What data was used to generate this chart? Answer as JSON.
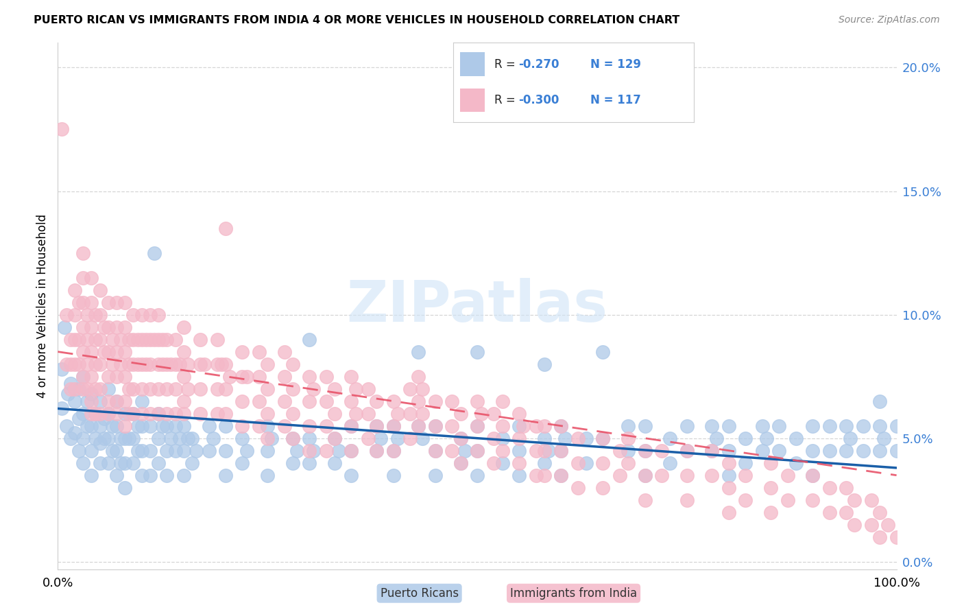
{
  "title": "PUERTO RICAN VS IMMIGRANTS FROM INDIA 4 OR MORE VEHICLES IN HOUSEHOLD CORRELATION CHART",
  "source": "Source: ZipAtlas.com",
  "ylabel": "4 or more Vehicles in Household",
  "xlim": [
    0,
    100
  ],
  "ylim": [
    -0.3,
    21
  ],
  "ytick_vals": [
    0,
    5,
    10,
    15,
    20
  ],
  "ytick_labels": [
    "0.0%",
    "5.0%",
    "10.0%",
    "15.0%",
    "20.0%"
  ],
  "color_blue": "#aec9e8",
  "color_pink": "#f4b8c8",
  "line_blue": "#1a5fa8",
  "line_pink": "#e8546a",
  "watermark": "ZIPatlas",
  "blue_scatter": [
    [
      0.5,
      7.8
    ],
    [
      0.5,
      6.2
    ],
    [
      0.8,
      9.5
    ],
    [
      1.0,
      5.5
    ],
    [
      1.2,
      6.8
    ],
    [
      1.5,
      7.2
    ],
    [
      1.5,
      5.0
    ],
    [
      2.0,
      6.5
    ],
    [
      2.0,
      5.2
    ],
    [
      2.5,
      7.0
    ],
    [
      2.5,
      5.8
    ],
    [
      2.5,
      4.5
    ],
    [
      3.0,
      7.5
    ],
    [
      3.0,
      6.0
    ],
    [
      3.0,
      5.0
    ],
    [
      3.0,
      4.0
    ],
    [
      3.5,
      6.5
    ],
    [
      3.5,
      5.5
    ],
    [
      4.0,
      6.8
    ],
    [
      4.0,
      5.5
    ],
    [
      4.0,
      4.5
    ],
    [
      4.0,
      3.5
    ],
    [
      4.5,
      6.0
    ],
    [
      4.5,
      5.0
    ],
    [
      5.0,
      6.5
    ],
    [
      5.0,
      5.5
    ],
    [
      5.0,
      4.8
    ],
    [
      5.0,
      4.0
    ],
    [
      5.5,
      5.8
    ],
    [
      5.5,
      5.0
    ],
    [
      6.0,
      7.0
    ],
    [
      6.0,
      6.0
    ],
    [
      6.0,
      5.0
    ],
    [
      6.0,
      4.0
    ],
    [
      6.5,
      5.5
    ],
    [
      6.5,
      4.5
    ],
    [
      7.0,
      6.5
    ],
    [
      7.0,
      5.5
    ],
    [
      7.0,
      4.5
    ],
    [
      7.0,
      3.5
    ],
    [
      7.5,
      5.0
    ],
    [
      7.5,
      4.0
    ],
    [
      8.0,
      6.0
    ],
    [
      8.0,
      5.0
    ],
    [
      8.0,
      4.0
    ],
    [
      8.0,
      3.0
    ],
    [
      8.5,
      5.0
    ],
    [
      9.0,
      6.0
    ],
    [
      9.0,
      5.0
    ],
    [
      9.0,
      4.0
    ],
    [
      9.5,
      5.5
    ],
    [
      9.5,
      4.5
    ],
    [
      10.0,
      6.5
    ],
    [
      10.0,
      5.5
    ],
    [
      10.0,
      4.5
    ],
    [
      10.0,
      3.5
    ],
    [
      11.0,
      5.5
    ],
    [
      11.0,
      4.5
    ],
    [
      11.0,
      3.5
    ],
    [
      11.5,
      12.5
    ],
    [
      12.0,
      6.0
    ],
    [
      12.0,
      5.0
    ],
    [
      12.0,
      4.0
    ],
    [
      12.5,
      5.5
    ],
    [
      13.0,
      5.5
    ],
    [
      13.0,
      4.5
    ],
    [
      13.0,
      3.5
    ],
    [
      13.5,
      5.0
    ],
    [
      14.0,
      5.5
    ],
    [
      14.0,
      4.5
    ],
    [
      14.5,
      5.0
    ],
    [
      15.0,
      5.5
    ],
    [
      15.0,
      4.5
    ],
    [
      15.0,
      3.5
    ],
    [
      15.5,
      5.0
    ],
    [
      16.0,
      5.0
    ],
    [
      16.0,
      4.0
    ],
    [
      16.5,
      4.5
    ],
    [
      18.0,
      5.5
    ],
    [
      18.0,
      4.5
    ],
    [
      18.5,
      5.0
    ],
    [
      20.0,
      5.5
    ],
    [
      20.0,
      4.5
    ],
    [
      20.0,
      3.5
    ],
    [
      22.0,
      5.0
    ],
    [
      22.0,
      4.0
    ],
    [
      22.5,
      4.5
    ],
    [
      25.0,
      5.5
    ],
    [
      25.0,
      4.5
    ],
    [
      25.0,
      3.5
    ],
    [
      25.5,
      5.0
    ],
    [
      28.0,
      5.0
    ],
    [
      28.0,
      4.0
    ],
    [
      28.5,
      4.5
    ],
    [
      30.0,
      9.0
    ],
    [
      30.0,
      5.0
    ],
    [
      30.0,
      4.0
    ],
    [
      30.5,
      4.5
    ],
    [
      33.0,
      5.0
    ],
    [
      33.0,
      4.0
    ],
    [
      33.5,
      4.5
    ],
    [
      35.0,
      5.5
    ],
    [
      35.0,
      4.5
    ],
    [
      35.0,
      3.5
    ],
    [
      38.0,
      5.5
    ],
    [
      38.0,
      4.5
    ],
    [
      38.5,
      5.0
    ],
    [
      40.0,
      5.5
    ],
    [
      40.0,
      4.5
    ],
    [
      40.0,
      3.5
    ],
    [
      40.5,
      5.0
    ],
    [
      43.0,
      8.5
    ],
    [
      43.0,
      5.5
    ],
    [
      43.5,
      5.0
    ],
    [
      45.0,
      5.5
    ],
    [
      45.0,
      4.5
    ],
    [
      45.0,
      3.5
    ],
    [
      48.0,
      5.0
    ],
    [
      48.0,
      4.0
    ],
    [
      48.5,
      4.5
    ],
    [
      50.0,
      8.5
    ],
    [
      50.0,
      5.5
    ],
    [
      50.0,
      4.5
    ],
    [
      50.0,
      3.5
    ],
    [
      53.0,
      5.0
    ],
    [
      53.0,
      4.0
    ],
    [
      55.0,
      5.5
    ],
    [
      55.0,
      4.5
    ],
    [
      55.0,
      3.5
    ],
    [
      58.0,
      8.0
    ],
    [
      58.0,
      5.0
    ],
    [
      58.0,
      4.0
    ],
    [
      58.5,
      4.5
    ],
    [
      60.0,
      5.5
    ],
    [
      60.0,
      4.5
    ],
    [
      60.0,
      3.5
    ],
    [
      60.5,
      5.0
    ],
    [
      63.0,
      5.0
    ],
    [
      63.0,
      4.0
    ],
    [
      65.0,
      8.5
    ],
    [
      65.0,
      5.0
    ],
    [
      68.0,
      5.5
    ],
    [
      68.0,
      4.5
    ],
    [
      70.0,
      5.5
    ],
    [
      70.0,
      4.5
    ],
    [
      70.0,
      3.5
    ],
    [
      73.0,
      5.0
    ],
    [
      73.0,
      4.0
    ],
    [
      75.0,
      5.5
    ],
    [
      75.0,
      4.5
    ],
    [
      78.0,
      5.5
    ],
    [
      78.0,
      4.5
    ],
    [
      78.5,
      5.0
    ],
    [
      80.0,
      5.5
    ],
    [
      80.0,
      4.5
    ],
    [
      80.0,
      3.5
    ],
    [
      82.0,
      5.0
    ],
    [
      82.0,
      4.0
    ],
    [
      84.0,
      5.5
    ],
    [
      84.0,
      4.5
    ],
    [
      84.5,
      5.0
    ],
    [
      86.0,
      5.5
    ],
    [
      86.0,
      4.5
    ],
    [
      88.0,
      5.0
    ],
    [
      88.0,
      4.0
    ],
    [
      90.0,
      5.5
    ],
    [
      90.0,
      4.5
    ],
    [
      90.0,
      3.5
    ],
    [
      92.0,
      5.5
    ],
    [
      92.0,
      4.5
    ],
    [
      94.0,
      5.5
    ],
    [
      94.0,
      4.5
    ],
    [
      94.5,
      5.0
    ],
    [
      96.0,
      5.5
    ],
    [
      96.0,
      4.5
    ],
    [
      98.0,
      6.5
    ],
    [
      98.0,
      5.5
    ],
    [
      98.0,
      4.5
    ],
    [
      98.5,
      5.0
    ],
    [
      100.0,
      5.5
    ],
    [
      100.0,
      4.5
    ]
  ],
  "pink_scatter": [
    [
      0.5,
      17.5
    ],
    [
      1.0,
      10.0
    ],
    [
      1.0,
      8.0
    ],
    [
      1.5,
      9.0
    ],
    [
      1.5,
      8.0
    ],
    [
      1.5,
      7.0
    ],
    [
      2.0,
      11.0
    ],
    [
      2.0,
      10.0
    ],
    [
      2.0,
      9.0
    ],
    [
      2.0,
      8.0
    ],
    [
      2.0,
      7.0
    ],
    [
      2.5,
      10.5
    ],
    [
      2.5,
      9.0
    ],
    [
      2.5,
      8.0
    ],
    [
      3.0,
      12.5
    ],
    [
      3.0,
      11.5
    ],
    [
      3.0,
      10.5
    ],
    [
      3.0,
      9.5
    ],
    [
      3.0,
      8.5
    ],
    [
      3.0,
      7.5
    ],
    [
      3.0,
      7.0
    ],
    [
      3.5,
      10.0
    ],
    [
      3.5,
      9.0
    ],
    [
      3.5,
      8.0
    ],
    [
      3.5,
      7.0
    ],
    [
      4.0,
      11.5
    ],
    [
      4.0,
      10.5
    ],
    [
      4.0,
      9.5
    ],
    [
      4.0,
      8.5
    ],
    [
      4.0,
      7.5
    ],
    [
      4.0,
      6.5
    ],
    [
      4.0,
      6.0
    ],
    [
      4.5,
      10.0
    ],
    [
      4.5,
      9.0
    ],
    [
      4.5,
      8.0
    ],
    [
      4.5,
      7.0
    ],
    [
      4.5,
      6.0
    ],
    [
      5.0,
      11.0
    ],
    [
      5.0,
      10.0
    ],
    [
      5.0,
      9.0
    ],
    [
      5.0,
      8.0
    ],
    [
      5.0,
      7.0
    ],
    [
      5.0,
      6.0
    ],
    [
      5.5,
      9.5
    ],
    [
      5.5,
      8.5
    ],
    [
      6.0,
      10.5
    ],
    [
      6.0,
      9.5
    ],
    [
      6.0,
      8.5
    ],
    [
      6.0,
      7.5
    ],
    [
      6.0,
      6.5
    ],
    [
      6.0,
      6.0
    ],
    [
      6.5,
      9.0
    ],
    [
      6.5,
      8.0
    ],
    [
      7.0,
      10.5
    ],
    [
      7.0,
      9.5
    ],
    [
      7.0,
      8.5
    ],
    [
      7.0,
      7.5
    ],
    [
      7.0,
      6.5
    ],
    [
      7.0,
      6.0
    ],
    [
      7.5,
      9.0
    ],
    [
      7.5,
      8.0
    ],
    [
      8.0,
      10.5
    ],
    [
      8.0,
      9.5
    ],
    [
      8.0,
      8.5
    ],
    [
      8.0,
      7.5
    ],
    [
      8.0,
      6.5
    ],
    [
      8.0,
      5.5
    ],
    [
      8.5,
      9.0
    ],
    [
      8.5,
      8.0
    ],
    [
      8.5,
      7.0
    ],
    [
      8.5,
      6.0
    ],
    [
      9.0,
      10.0
    ],
    [
      9.0,
      9.0
    ],
    [
      9.0,
      8.0
    ],
    [
      9.0,
      7.0
    ],
    [
      9.0,
      6.0
    ],
    [
      9.5,
      9.0
    ],
    [
      9.5,
      8.0
    ],
    [
      10.0,
      10.0
    ],
    [
      10.0,
      9.0
    ],
    [
      10.0,
      8.0
    ],
    [
      10.0,
      7.0
    ],
    [
      10.0,
      6.0
    ],
    [
      10.5,
      9.0
    ],
    [
      10.5,
      8.0
    ],
    [
      11.0,
      10.0
    ],
    [
      11.0,
      9.0
    ],
    [
      11.0,
      8.0
    ],
    [
      11.0,
      7.0
    ],
    [
      11.0,
      6.0
    ],
    [
      11.5,
      9.0
    ],
    [
      12.0,
      10.0
    ],
    [
      12.0,
      9.0
    ],
    [
      12.0,
      8.0
    ],
    [
      12.0,
      7.0
    ],
    [
      12.0,
      6.0
    ],
    [
      12.5,
      9.0
    ],
    [
      12.5,
      8.0
    ],
    [
      13.0,
      9.0
    ],
    [
      13.0,
      8.0
    ],
    [
      13.0,
      7.0
    ],
    [
      13.0,
      6.0
    ],
    [
      13.5,
      8.0
    ],
    [
      14.0,
      9.0
    ],
    [
      14.0,
      8.0
    ],
    [
      14.0,
      7.0
    ],
    [
      14.0,
      6.0
    ],
    [
      14.5,
      8.0
    ],
    [
      15.0,
      9.5
    ],
    [
      15.0,
      8.5
    ],
    [
      15.0,
      7.5
    ],
    [
      15.0,
      6.5
    ],
    [
      15.0,
      6.0
    ],
    [
      15.5,
      8.0
    ],
    [
      15.5,
      7.0
    ],
    [
      17.0,
      9.0
    ],
    [
      17.0,
      8.0
    ],
    [
      17.0,
      7.0
    ],
    [
      17.0,
      6.0
    ],
    [
      17.5,
      8.0
    ],
    [
      19.0,
      9.0
    ],
    [
      19.0,
      8.0
    ],
    [
      19.0,
      7.0
    ],
    [
      19.0,
      6.0
    ],
    [
      19.5,
      8.0
    ],
    [
      20.0,
      13.5
    ],
    [
      20.0,
      8.0
    ],
    [
      20.0,
      7.0
    ],
    [
      20.0,
      6.0
    ],
    [
      20.5,
      7.5
    ],
    [
      22.0,
      8.5
    ],
    [
      22.0,
      7.5
    ],
    [
      22.0,
      6.5
    ],
    [
      22.0,
      5.5
    ],
    [
      22.5,
      7.5
    ],
    [
      24.0,
      8.5
    ],
    [
      24.0,
      7.5
    ],
    [
      24.0,
      6.5
    ],
    [
      24.0,
      5.5
    ],
    [
      25.0,
      8.0
    ],
    [
      25.0,
      7.0
    ],
    [
      25.0,
      6.0
    ],
    [
      25.0,
      5.0
    ],
    [
      27.0,
      8.5
    ],
    [
      27.0,
      7.5
    ],
    [
      27.0,
      6.5
    ],
    [
      27.0,
      5.5
    ],
    [
      28.0,
      8.0
    ],
    [
      28.0,
      7.0
    ],
    [
      28.0,
      6.0
    ],
    [
      28.0,
      5.0
    ],
    [
      30.0,
      7.5
    ],
    [
      30.0,
      6.5
    ],
    [
      30.0,
      5.5
    ],
    [
      30.0,
      4.5
    ],
    [
      30.5,
      7.0
    ],
    [
      32.0,
      7.5
    ],
    [
      32.0,
      6.5
    ],
    [
      32.0,
      5.5
    ],
    [
      32.0,
      4.5
    ],
    [
      33.0,
      7.0
    ],
    [
      33.0,
      6.0
    ],
    [
      33.0,
      5.0
    ],
    [
      35.0,
      7.5
    ],
    [
      35.0,
      6.5
    ],
    [
      35.0,
      5.5
    ],
    [
      35.0,
      4.5
    ],
    [
      35.5,
      7.0
    ],
    [
      35.5,
      6.0
    ],
    [
      37.0,
      7.0
    ],
    [
      37.0,
      6.0
    ],
    [
      37.0,
      5.0
    ],
    [
      38.0,
      6.5
    ],
    [
      38.0,
      5.5
    ],
    [
      38.0,
      4.5
    ],
    [
      40.0,
      6.5
    ],
    [
      40.0,
      5.5
    ],
    [
      40.0,
      4.5
    ],
    [
      40.5,
      6.0
    ],
    [
      42.0,
      7.0
    ],
    [
      42.0,
      6.0
    ],
    [
      42.0,
      5.0
    ],
    [
      43.0,
      7.5
    ],
    [
      43.0,
      6.5
    ],
    [
      43.0,
      5.5
    ],
    [
      43.5,
      7.0
    ],
    [
      43.5,
      6.0
    ],
    [
      45.0,
      6.5
    ],
    [
      45.0,
      5.5
    ],
    [
      45.0,
      4.5
    ],
    [
      47.0,
      6.5
    ],
    [
      47.0,
      5.5
    ],
    [
      47.0,
      4.5
    ],
    [
      48.0,
      6.0
    ],
    [
      48.0,
      5.0
    ],
    [
      48.0,
      4.0
    ],
    [
      50.0,
      6.5
    ],
    [
      50.0,
      5.5
    ],
    [
      50.0,
      4.5
    ],
    [
      50.5,
      6.0
    ],
    [
      52.0,
      6.0
    ],
    [
      52.0,
      5.0
    ],
    [
      52.0,
      4.0
    ],
    [
      53.0,
      6.5
    ],
    [
      53.0,
      5.5
    ],
    [
      53.0,
      4.5
    ],
    [
      55.0,
      6.0
    ],
    [
      55.0,
      5.0
    ],
    [
      55.0,
      4.0
    ],
    [
      55.5,
      5.5
    ],
    [
      57.0,
      5.5
    ],
    [
      57.0,
      4.5
    ],
    [
      57.0,
      3.5
    ],
    [
      58.0,
      5.5
    ],
    [
      58.0,
      4.5
    ],
    [
      58.0,
      3.5
    ],
    [
      60.0,
      5.5
    ],
    [
      60.0,
      4.5
    ],
    [
      60.0,
      3.5
    ],
    [
      62.0,
      5.0
    ],
    [
      62.0,
      4.0
    ],
    [
      62.0,
      3.0
    ],
    [
      65.0,
      5.0
    ],
    [
      65.0,
      4.0
    ],
    [
      65.0,
      3.0
    ],
    [
      67.0,
      4.5
    ],
    [
      67.0,
      3.5
    ],
    [
      68.0,
      5.0
    ],
    [
      68.0,
      4.0
    ],
    [
      70.0,
      4.5
    ],
    [
      70.0,
      3.5
    ],
    [
      70.0,
      2.5
    ],
    [
      72.0,
      4.5
    ],
    [
      72.0,
      3.5
    ],
    [
      75.0,
      4.5
    ],
    [
      75.0,
      3.5
    ],
    [
      75.0,
      2.5
    ],
    [
      78.0,
      4.5
    ],
    [
      78.0,
      3.5
    ],
    [
      80.0,
      4.0
    ],
    [
      80.0,
      3.0
    ],
    [
      80.0,
      2.0
    ],
    [
      82.0,
      3.5
    ],
    [
      82.0,
      2.5
    ],
    [
      85.0,
      4.0
    ],
    [
      85.0,
      3.0
    ],
    [
      85.0,
      2.0
    ],
    [
      87.0,
      3.5
    ],
    [
      87.0,
      2.5
    ],
    [
      90.0,
      3.5
    ],
    [
      90.0,
      2.5
    ],
    [
      92.0,
      3.0
    ],
    [
      92.0,
      2.0
    ],
    [
      94.0,
      3.0
    ],
    [
      94.0,
      2.0
    ],
    [
      95.0,
      2.5
    ],
    [
      95.0,
      1.5
    ],
    [
      97.0,
      2.5
    ],
    [
      97.0,
      1.5
    ],
    [
      98.0,
      2.0
    ],
    [
      98.0,
      1.0
    ],
    [
      99.0,
      1.5
    ],
    [
      100.0,
      1.0
    ]
  ],
  "blue_line_x": [
    0,
    100
  ],
  "blue_line_y": [
    6.2,
    3.8
  ],
  "pink_line_x": [
    0,
    100
  ],
  "pink_line_y": [
    8.5,
    3.5
  ],
  "background_color": "#ffffff",
  "grid_color": "#cccccc"
}
